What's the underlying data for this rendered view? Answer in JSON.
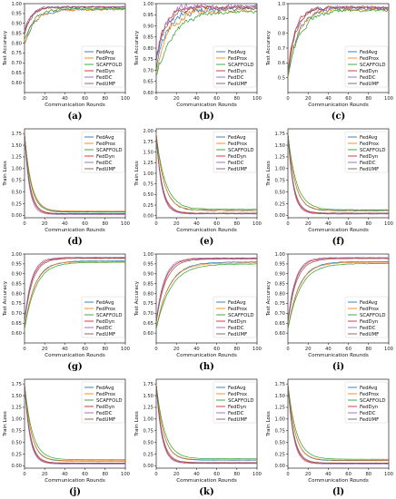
{
  "colors": {
    "FedAvg": "#1f77b4",
    "FedProx": "#ff7f0e",
    "SCAFFOLD": "#2ca02c",
    "FedDyn": "#d62728",
    "FedDC": "#9467bd",
    "FedUMF": "#8c564b"
  },
  "chart_data": [
    {
      "label": "(a)",
      "caption": "(a)",
      "type": "line",
      "xlabel": "Communication Rounds",
      "ylabel": "Test Accuracy",
      "xlim": [
        0,
        100
      ],
      "ylim": [
        0.55,
        1.0
      ],
      "xticks": [
        0,
        20,
        40,
        60,
        80,
        100
      ],
      "yticks": [
        0.6,
        0.65,
        0.7,
        0.75,
        0.8,
        0.85,
        0.9,
        0.95,
        1.0
      ],
      "ytick_labels": [
        "0.60",
        "0.65",
        "0.70",
        "0.75",
        "0.80",
        "0.85",
        "0.90",
        "0.95",
        "1.00"
      ],
      "legend": "lower-right",
      "series": [
        {
          "name": "FedAvg",
          "start": 0.8,
          "end": 0.972,
          "rate": 0.1,
          "noise": 0.01
        },
        {
          "name": "FedProx",
          "start": 0.8,
          "end": 0.97,
          "rate": 0.1,
          "noise": 0.01
        },
        {
          "name": "SCAFFOLD",
          "start": 0.82,
          "end": 0.975,
          "rate": 0.1,
          "noise": 0.008
        },
        {
          "name": "FedDyn",
          "start": 0.85,
          "end": 0.983,
          "rate": 0.15,
          "noise": 0.006
        },
        {
          "name": "FedDC",
          "start": 0.86,
          "end": 0.985,
          "rate": 0.16,
          "noise": 0.006
        },
        {
          "name": "FedUMF",
          "start": 0.84,
          "end": 0.982,
          "rate": 0.14,
          "noise": 0.006
        }
      ]
    },
    {
      "label": "(b)",
      "caption": "(b)",
      "type": "line",
      "xlabel": "Communication Rounds",
      "ylabel": "Test Accuracy",
      "xlim": [
        0,
        100
      ],
      "ylim": [
        0.6,
        1.0
      ],
      "xticks": [
        0,
        20,
        40,
        60,
        80,
        100
      ],
      "yticks": [
        0.6,
        0.65,
        0.7,
        0.75,
        0.8,
        0.85,
        0.9,
        0.95,
        1.0
      ],
      "ytick_labels": [
        "0.60",
        "0.65",
        "0.70",
        "0.75",
        "0.80",
        "0.85",
        "0.90",
        "0.95",
        "1.00"
      ],
      "legend": "lower-right",
      "series": [
        {
          "name": "FedAvg",
          "start": 0.7,
          "end": 0.975,
          "rate": 0.09,
          "noise": 0.02
        },
        {
          "name": "FedProx",
          "start": 0.7,
          "end": 0.972,
          "rate": 0.08,
          "noise": 0.02
        },
        {
          "name": "SCAFFOLD",
          "start": 0.68,
          "end": 0.965,
          "rate": 0.06,
          "noise": 0.015
        },
        {
          "name": "FedDyn",
          "start": 0.75,
          "end": 0.985,
          "rate": 0.12,
          "noise": 0.012
        },
        {
          "name": "FedDC",
          "start": 0.76,
          "end": 0.985,
          "rate": 0.11,
          "noise": 0.025
        },
        {
          "name": "FedUMF",
          "start": 0.74,
          "end": 0.98,
          "rate": 0.11,
          "noise": 0.012
        }
      ]
    },
    {
      "label": "(c)",
      "caption": "(c)",
      "type": "line",
      "xlabel": "Communication Rounds",
      "ylabel": "Test Accuracy",
      "xlim": [
        0,
        100
      ],
      "ylim": [
        0.4,
        1.0
      ],
      "xticks": [
        0,
        20,
        40,
        60,
        80,
        100
      ],
      "yticks": [
        0.5,
        0.6,
        0.7,
        0.8,
        0.9,
        1.0
      ],
      "ytick_labels": [
        "0.5",
        "0.6",
        "0.7",
        "0.8",
        "0.9",
        "1.0"
      ],
      "legend": "lower-right",
      "series": [
        {
          "name": "FedAvg",
          "start": 0.5,
          "end": 0.965,
          "rate": 0.1,
          "noise": 0.02
        },
        {
          "name": "FedProx",
          "start": 0.5,
          "end": 0.962,
          "rate": 0.1,
          "noise": 0.02
        },
        {
          "name": "SCAFFOLD",
          "start": 0.52,
          "end": 0.955,
          "rate": 0.08,
          "noise": 0.018
        },
        {
          "name": "FedDyn",
          "start": 0.55,
          "end": 0.975,
          "rate": 0.13,
          "noise": 0.015
        },
        {
          "name": "FedDC",
          "start": 0.55,
          "end": 0.975,
          "rate": 0.12,
          "noise": 0.022
        },
        {
          "name": "FedUMF",
          "start": 0.53,
          "end": 0.972,
          "rate": 0.12,
          "noise": 0.015
        }
      ]
    },
    {
      "label": "(d)",
      "caption": "(d)",
      "type": "line",
      "xlabel": "Communication Rounds",
      "ylabel": "Train Loss",
      "xlim": [
        0,
        100
      ],
      "ylim": [
        -0.05,
        1.85
      ],
      "xticks": [
        0,
        20,
        40,
        60,
        80,
        100
      ],
      "yticks": [
        0.0,
        0.25,
        0.5,
        0.75,
        1.0,
        1.25,
        1.5,
        1.75
      ],
      "ytick_labels": [
        "0.00",
        "0.25",
        "0.50",
        "0.75",
        "1.00",
        "1.25",
        "1.50",
        "1.75"
      ],
      "legend": "upper-right",
      "series": [
        {
          "name": "FedAvg",
          "start": 1.75,
          "end": 0.08,
          "rate": 0.15,
          "noise": 0.004
        },
        {
          "name": "FedProx",
          "start": 1.75,
          "end": 0.09,
          "rate": 0.15,
          "noise": 0.004
        },
        {
          "name": "SCAFFOLD",
          "start": 1.75,
          "end": 0.07,
          "rate": 0.16,
          "noise": 0.004
        },
        {
          "name": "FedDyn",
          "start": 1.75,
          "end": 0.03,
          "rate": 0.2,
          "noise": 0.003
        },
        {
          "name": "FedDC",
          "start": 1.75,
          "end": 0.02,
          "rate": 0.22,
          "noise": 0.003
        },
        {
          "name": "FedUMF",
          "start": 1.75,
          "end": 0.04,
          "rate": 0.19,
          "noise": 0.003
        }
      ]
    },
    {
      "label": "(e)",
      "caption": "(e)",
      "type": "line",
      "xlabel": "Communication Rounds",
      "ylabel": "Train Loss",
      "xlim": [
        0,
        100
      ],
      "ylim": [
        -0.05,
        2.05
      ],
      "xticks": [
        0,
        20,
        40,
        60,
        80,
        100
      ],
      "yticks": [
        0.0,
        0.25,
        0.5,
        0.75,
        1.0,
        1.25,
        1.5,
        1.75,
        2.0
      ],
      "ytick_labels": [
        "0.00",
        "0.25",
        "0.50",
        "0.75",
        "1.00",
        "1.25",
        "1.50",
        "1.75",
        "2.00"
      ],
      "legend": "upper-right",
      "series": [
        {
          "name": "FedAvg",
          "start": 1.95,
          "end": 0.12,
          "rate": 0.13,
          "noise": 0.015
        },
        {
          "name": "FedProx",
          "start": 1.95,
          "end": 0.13,
          "rate": 0.13,
          "noise": 0.015
        },
        {
          "name": "SCAFFOLD",
          "start": 1.9,
          "end": 0.15,
          "rate": 0.11,
          "noise": 0.012
        },
        {
          "name": "FedDyn",
          "start": 1.9,
          "end": 0.05,
          "rate": 0.18,
          "noise": 0.008
        },
        {
          "name": "FedDC",
          "start": 1.9,
          "end": 0.04,
          "rate": 0.19,
          "noise": 0.008
        },
        {
          "name": "FedUMF",
          "start": 1.9,
          "end": 0.06,
          "rate": 0.17,
          "noise": 0.008
        }
      ]
    },
    {
      "label": "(f)",
      "caption": "(f)",
      "type": "line",
      "xlabel": "Communication Rounds",
      "ylabel": "Train Loss",
      "xlim": [
        0,
        100
      ],
      "ylim": [
        -0.05,
        1.85
      ],
      "xticks": [
        0,
        20,
        40,
        60,
        80,
        100
      ],
      "yticks": [
        0.0,
        0.25,
        0.5,
        0.75,
        1.0,
        1.25,
        1.5,
        1.75
      ],
      "ytick_labels": [
        "0.00",
        "0.25",
        "0.50",
        "0.75",
        "1.00",
        "1.25",
        "1.50",
        "1.75"
      ],
      "legend": "upper-right",
      "series": [
        {
          "name": "FedAvg",
          "start": 1.75,
          "end": 0.1,
          "rate": 0.14,
          "noise": 0.008
        },
        {
          "name": "FedProx",
          "start": 1.75,
          "end": 0.11,
          "rate": 0.14,
          "noise": 0.008
        },
        {
          "name": "SCAFFOLD",
          "start": 1.75,
          "end": 0.12,
          "rate": 0.12,
          "noise": 0.008
        },
        {
          "name": "FedDyn",
          "start": 1.75,
          "end": 0.04,
          "rate": 0.19,
          "noise": 0.005
        },
        {
          "name": "FedDC",
          "start": 1.75,
          "end": 0.03,
          "rate": 0.2,
          "noise": 0.005
        },
        {
          "name": "FedUMF",
          "start": 1.75,
          "end": 0.05,
          "rate": 0.18,
          "noise": 0.005
        }
      ]
    },
    {
      "label": "(g)",
      "caption": "(g)",
      "type": "line",
      "xlabel": "Communication Rounds",
      "ylabel": "Test Accuracy",
      "xlim": [
        0,
        100
      ],
      "ylim": [
        0.55,
        1.0
      ],
      "xticks": [
        0,
        20,
        40,
        60,
        80,
        100
      ],
      "yticks": [
        0.6,
        0.65,
        0.7,
        0.75,
        0.8,
        0.85,
        0.9,
        0.95,
        1.0
      ],
      "ytick_labels": [
        "0.60",
        "0.65",
        "0.70",
        "0.75",
        "0.80",
        "0.85",
        "0.90",
        "0.95",
        "1.00"
      ],
      "legend": "lower-right",
      "series": [
        {
          "name": "FedAvg",
          "start": 0.62,
          "end": 0.965,
          "rate": 0.1,
          "noise": 0.002
        },
        {
          "name": "FedProx",
          "start": 0.62,
          "end": 0.962,
          "rate": 0.1,
          "noise": 0.002
        },
        {
          "name": "SCAFFOLD",
          "start": 0.62,
          "end": 0.958,
          "rate": 0.09,
          "noise": 0.002
        },
        {
          "name": "FedDyn",
          "start": 0.66,
          "end": 0.98,
          "rate": 0.14,
          "noise": 0.002
        },
        {
          "name": "FedDC",
          "start": 0.66,
          "end": 0.983,
          "rate": 0.15,
          "noise": 0.002
        },
        {
          "name": "FedUMF",
          "start": 0.65,
          "end": 0.978,
          "rate": 0.13,
          "noise": 0.002
        }
      ]
    },
    {
      "label": "(h)",
      "caption": "(h)",
      "type": "line",
      "xlabel": "Communication Rounds",
      "ylabel": "Test Accuracy",
      "xlim": [
        0,
        100
      ],
      "ylim": [
        0.55,
        1.0
      ],
      "xticks": [
        0,
        20,
        40,
        60,
        80,
        100
      ],
      "yticks": [
        0.6,
        0.65,
        0.7,
        0.75,
        0.8,
        0.85,
        0.9,
        0.95,
        1.0
      ],
      "ytick_labels": [
        "0.60",
        "0.65",
        "0.70",
        "0.75",
        "0.80",
        "0.85",
        "0.90",
        "0.95",
        "1.00"
      ],
      "legend": "lower-right",
      "series": [
        {
          "name": "FedAvg",
          "start": 0.62,
          "end": 0.96,
          "rate": 0.08,
          "noise": 0.002
        },
        {
          "name": "FedProx",
          "start": 0.62,
          "end": 0.955,
          "rate": 0.08,
          "noise": 0.002
        },
        {
          "name": "SCAFFOLD",
          "start": 0.62,
          "end": 0.95,
          "rate": 0.07,
          "noise": 0.002
        },
        {
          "name": "FedDyn",
          "start": 0.66,
          "end": 0.978,
          "rate": 0.12,
          "noise": 0.002
        },
        {
          "name": "FedDC",
          "start": 0.66,
          "end": 0.98,
          "rate": 0.13,
          "noise": 0.002
        },
        {
          "name": "FedUMF",
          "start": 0.65,
          "end": 0.975,
          "rate": 0.11,
          "noise": 0.002
        }
      ]
    },
    {
      "label": "(i)",
      "caption": "(i)",
      "type": "line",
      "xlabel": "Communication Rounds",
      "ylabel": "Test Accuracy",
      "xlim": [
        0,
        100
      ],
      "ylim": [
        0.55,
        1.0
      ],
      "xticks": [
        0,
        20,
        40,
        60,
        80,
        100
      ],
      "yticks": [
        0.6,
        0.65,
        0.7,
        0.75,
        0.8,
        0.85,
        0.9,
        0.95,
        1.0
      ],
      "ytick_labels": [
        "0.60",
        "0.65",
        "0.70",
        "0.75",
        "0.80",
        "0.85",
        "0.90",
        "0.95",
        "1.00"
      ],
      "legend": "lower-right",
      "series": [
        {
          "name": "FedAvg",
          "start": 0.62,
          "end": 0.962,
          "rate": 0.09,
          "noise": 0.002
        },
        {
          "name": "FedProx",
          "start": 0.62,
          "end": 0.958,
          "rate": 0.09,
          "noise": 0.002
        },
        {
          "name": "SCAFFOLD",
          "start": 0.62,
          "end": 0.952,
          "rate": 0.08,
          "noise": 0.002
        },
        {
          "name": "FedDyn",
          "start": 0.66,
          "end": 0.98,
          "rate": 0.13,
          "noise": 0.002
        },
        {
          "name": "FedDC",
          "start": 0.66,
          "end": 0.982,
          "rate": 0.14,
          "noise": 0.002
        },
        {
          "name": "FedUMF",
          "start": 0.65,
          "end": 0.977,
          "rate": 0.12,
          "noise": 0.002
        }
      ]
    },
    {
      "label": "(j)",
      "caption": "(j)",
      "type": "line",
      "xlabel": "Communication Rounds",
      "ylabel": "Train Loss",
      "xlim": [
        0,
        100
      ],
      "ylim": [
        -0.05,
        1.85
      ],
      "xticks": [
        0,
        20,
        40,
        60,
        80,
        100
      ],
      "yticks": [
        0.0,
        0.25,
        0.5,
        0.75,
        1.0,
        1.25,
        1.5,
        1.75
      ],
      "ytick_labels": [
        "0.00",
        "0.25",
        "0.50",
        "0.75",
        "1.00",
        "1.25",
        "1.50",
        "1.75"
      ],
      "legend": "upper-right",
      "series": [
        {
          "name": "FedAvg",
          "start": 1.75,
          "end": 0.1,
          "rate": 0.15,
          "noise": 0.002
        },
        {
          "name": "FedProx",
          "start": 1.75,
          "end": 0.11,
          "rate": 0.15,
          "noise": 0.002
        },
        {
          "name": "SCAFFOLD",
          "start": 1.75,
          "end": 0.13,
          "rate": 0.13,
          "noise": 0.002
        },
        {
          "name": "FedDyn",
          "start": 1.75,
          "end": 0.05,
          "rate": 0.19,
          "noise": 0.002
        },
        {
          "name": "FedDC",
          "start": 1.75,
          "end": 0.04,
          "rate": 0.2,
          "noise": 0.002
        },
        {
          "name": "FedUMF",
          "start": 1.75,
          "end": 0.06,
          "rate": 0.18,
          "noise": 0.002
        }
      ]
    },
    {
      "label": "(k)",
      "caption": "(k)",
      "type": "line",
      "xlabel": "Communication Rounds",
      "ylabel": "Train Loss",
      "xlim": [
        0,
        100
      ],
      "ylim": [
        -0.05,
        1.85
      ],
      "xticks": [
        0,
        20,
        40,
        60,
        80,
        100
      ],
      "yticks": [
        0.0,
        0.25,
        0.5,
        0.75,
        1.0,
        1.25,
        1.5,
        1.75
      ],
      "ytick_labels": [
        "0.00",
        "0.25",
        "0.50",
        "0.75",
        "1.00",
        "1.25",
        "1.50",
        "1.75"
      ],
      "legend": "upper-right",
      "series": [
        {
          "name": "FedAvg",
          "start": 1.75,
          "end": 0.12,
          "rate": 0.14,
          "noise": 0.002
        },
        {
          "name": "FedProx",
          "start": 1.75,
          "end": 0.13,
          "rate": 0.14,
          "noise": 0.002
        },
        {
          "name": "SCAFFOLD",
          "start": 1.75,
          "end": 0.15,
          "rate": 0.12,
          "noise": 0.002
        },
        {
          "name": "FedDyn",
          "start": 1.75,
          "end": 0.06,
          "rate": 0.18,
          "noise": 0.002
        },
        {
          "name": "FedDC",
          "start": 1.75,
          "end": 0.05,
          "rate": 0.19,
          "noise": 0.002
        },
        {
          "name": "FedUMF",
          "start": 1.75,
          "end": 0.07,
          "rate": 0.17,
          "noise": 0.002
        }
      ]
    },
    {
      "label": "(l)",
      "caption": "(l)",
      "type": "line",
      "xlabel": "Communication Rounds",
      "ylabel": "Train Loss",
      "xlim": [
        0,
        100
      ],
      "ylim": [
        -0.05,
        1.85
      ],
      "xticks": [
        0,
        20,
        40,
        60,
        80,
        100
      ],
      "yticks": [
        0.0,
        0.25,
        0.5,
        0.75,
        1.0,
        1.25,
        1.5,
        1.75
      ],
      "ytick_labels": [
        "0.00",
        "0.25",
        "0.50",
        "0.75",
        "1.00",
        "1.25",
        "1.50",
        "1.75"
      ],
      "legend": "upper-right",
      "series": [
        {
          "name": "FedAvg",
          "start": 1.75,
          "end": 0.11,
          "rate": 0.14,
          "noise": 0.002
        },
        {
          "name": "FedProx",
          "start": 1.75,
          "end": 0.12,
          "rate": 0.14,
          "noise": 0.002
        },
        {
          "name": "SCAFFOLD",
          "start": 1.75,
          "end": 0.14,
          "rate": 0.12,
          "noise": 0.002
        },
        {
          "name": "FedDyn",
          "start": 1.75,
          "end": 0.05,
          "rate": 0.18,
          "noise": 0.002
        },
        {
          "name": "FedDC",
          "start": 1.75,
          "end": 0.04,
          "rate": 0.19,
          "noise": 0.002
        },
        {
          "name": "FedUMF",
          "start": 1.75,
          "end": 0.06,
          "rate": 0.17,
          "noise": 0.002
        }
      ]
    }
  ]
}
